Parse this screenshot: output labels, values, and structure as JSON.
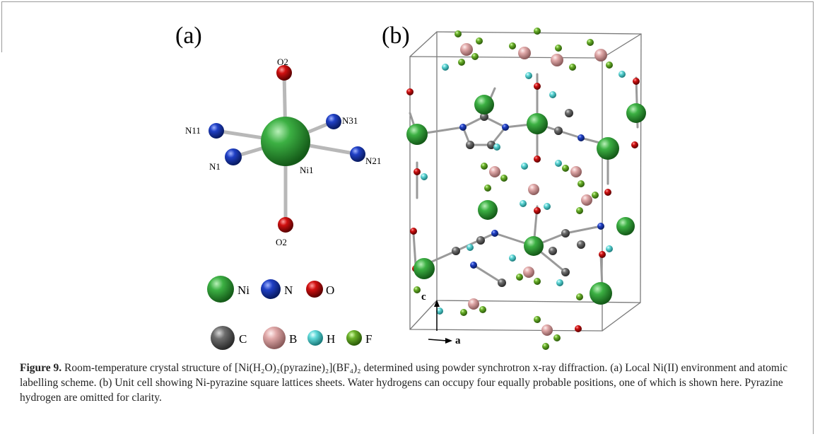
{
  "panel_a": {
    "label": "(a)",
    "atom_labels": {
      "O2_top": "O2",
      "N11": "N11",
      "N31": "N31",
      "N1": "N1",
      "Ni1": "Ni1",
      "N21": "N21",
      "O2_bottom": "O2"
    },
    "legend": [
      {
        "symbol": "Ni",
        "color": "#3cb043"
      },
      {
        "symbol": "N",
        "color": "#1f3fc4"
      },
      {
        "symbol": "O",
        "color": "#d01010"
      },
      {
        "symbol": "C",
        "color": "#6e6e6e"
      },
      {
        "symbol": "B",
        "color": "#e0a8a8"
      },
      {
        "symbol": "H",
        "color": "#5fd8d8"
      },
      {
        "symbol": "F",
        "color": "#6ab02a"
      }
    ]
  },
  "panel_b": {
    "label": "(b)",
    "axis_c": "c",
    "axis_a": "a"
  },
  "caption": {
    "lead": "Figure 9.",
    "text": " Room-temperature crystal structure of [Ni(H₂O)₂(pyrazine)₂](BF₄)₂ determined using powder synchrotron x-ray diffraction. (a) Local Ni(II) environment and atomic labelling scheme. (b) Unit cell showing Ni-pyrazine square lattices sheets. Water hydrogens can occupy four equally probable positions, one of which is shown here. Pyrazine hydrogen are omitted for clarity."
  },
  "colors": {
    "Ni": "#3cb043",
    "N": "#1f3fc4",
    "O": "#d01010",
    "C": "#6e6e6e",
    "B": "#e0a8a8",
    "H": "#5fd8d8",
    "F": "#6ab02a"
  }
}
